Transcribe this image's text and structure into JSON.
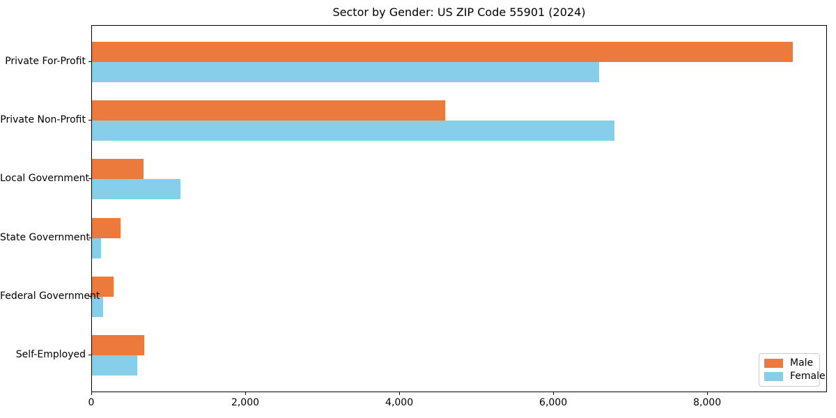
{
  "title": "Sector by Gender: US ZIP Code 55901 (2024)",
  "chart_data": {
    "type": "bar",
    "orientation": "horizontal",
    "title": "Sector by Gender: US ZIP Code 55901 (2024)",
    "categories": [
      "Private For-Profit",
      "Private Non-Profit",
      "Local Government",
      "State Government",
      "Federal Government",
      "Self-Employed"
    ],
    "series": [
      {
        "name": "Male",
        "color": "#EB7A3C",
        "values": [
          9100,
          4590,
          670,
          370,
          280,
          680
        ]
      },
      {
        "name": "Female",
        "color": "#87CEEB",
        "values": [
          6590,
          6790,
          1150,
          120,
          140,
          590
        ]
      }
    ],
    "xlabel": "",
    "ylabel": "",
    "xlim": [
      0,
      9555
    ],
    "x_ticks": [
      {
        "value": 0,
        "label": "0"
      },
      {
        "value": 2000,
        "label": "2,000"
      },
      {
        "value": 4000,
        "label": "4,000"
      },
      {
        "value": 6000,
        "label": "6,000"
      },
      {
        "value": 8000,
        "label": "8,000"
      }
    ],
    "grid": false,
    "legend": {
      "position": "lower right",
      "entries": [
        "Male",
        "Female"
      ]
    }
  }
}
